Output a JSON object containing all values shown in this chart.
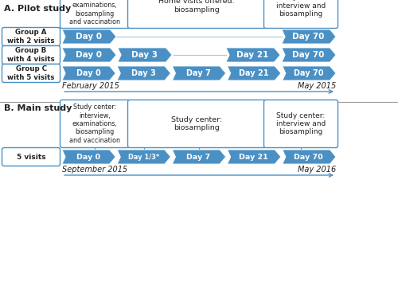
{
  "fig_width": 5.0,
  "fig_height": 3.68,
  "dpi": 100,
  "bg_color": "#ffffff",
  "blue_fill": "#4a90c4",
  "blue_light": "#a8cce0",
  "box_border": "#4a90c4",
  "text_dark": "#222222",
  "white_text": "#ffffff",
  "section_A_label": "A. Pilot study",
  "section_B_label": "B. Main study",
  "pilot_box1": "Study center:\ninterview,\nexaminations,\nbiosampling\nand vaccination",
  "pilot_box2": "Home visits offered:\nbiosampling",
  "pilot_box3": "Study center:\ninterview and\nbiosampling",
  "main_box1": "Study center:\ninterview,\nexaminations,\nbiosampling\nand vaccination",
  "main_box2": "Study center:\nbiosampling",
  "main_box3": "Study center:\ninterview and\nbiosampling",
  "groupA_label": "Group A\nwith 2 visits",
  "groupB_label": "Group B\nwith 4 visits",
  "groupC_label": "Group C\nwith 5 visits",
  "main_group_label": "5 visits",
  "pilot_start": "February 2015",
  "pilot_end": "May 2015",
  "main_start": "September 2015",
  "main_end": "May 2016",
  "groupA_days": [
    "Day 0",
    "Day 70"
  ],
  "groupB_days": [
    "Day 0",
    "Day 3",
    "Day 21",
    "Day 70"
  ],
  "groupC_days": [
    "Day 0",
    "Day 3",
    "Day 7",
    "Day 21",
    "Day 70"
  ],
  "main_days": [
    "Day 0",
    "Day 1/3*",
    "Day 7",
    "Day 21",
    "Day 70"
  ]
}
